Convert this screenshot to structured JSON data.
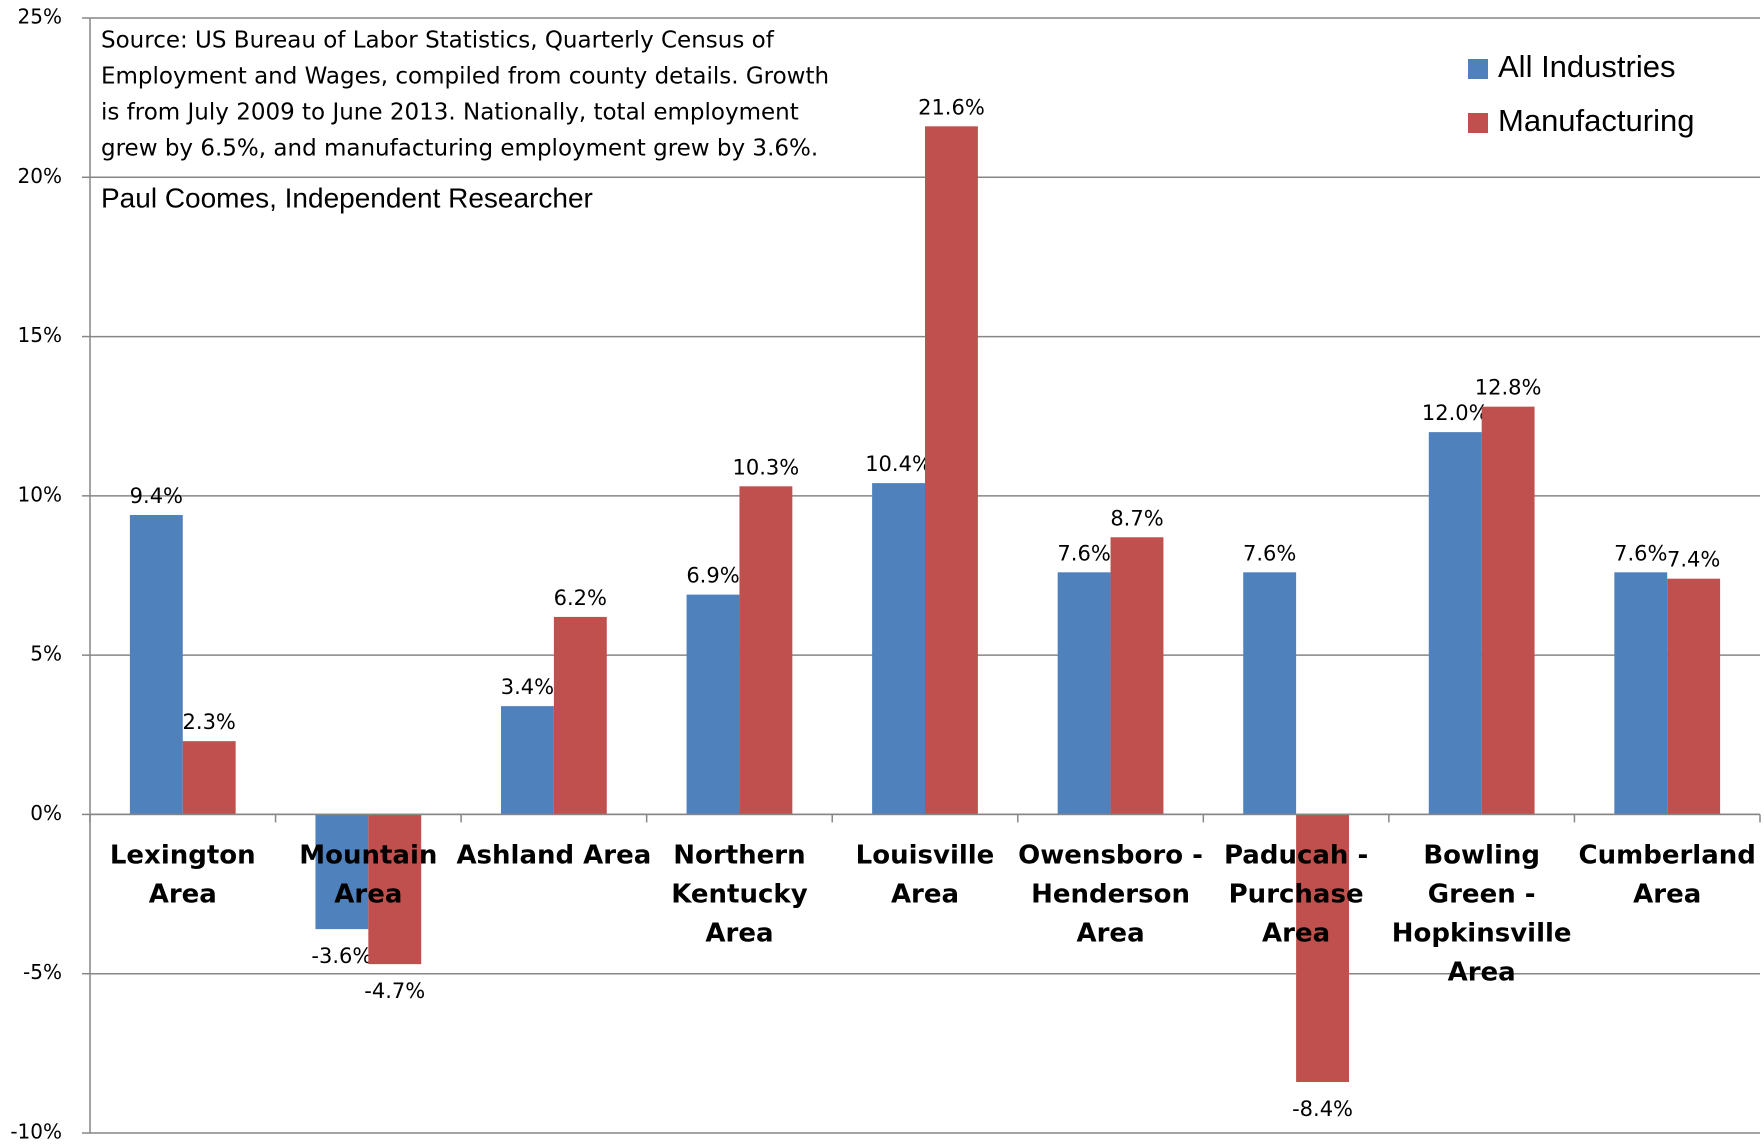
{
  "chart_data": {
    "type": "bar",
    "annotations": [
      "Source: US Bureau of Labor Statistics, Quarterly Census of",
      "Employment and Wages, compiled from county details. Growth",
      "is from July 2009 to June 2013. Nationally, total employment",
      "grew by 6.5%, and manufacturing employment grew by 3.6%."
    ],
    "author": "Paul Coomes, Independent Researcher",
    "categories": [
      [
        "Lexington",
        "Area"
      ],
      [
        "Mountain",
        "Area"
      ],
      [
        "Ashland Area"
      ],
      [
        "Northern",
        "Kentucky",
        "Area"
      ],
      [
        "Louisville",
        "Area"
      ],
      [
        "Owensboro -",
        "Henderson",
        "Area"
      ],
      [
        "Paducah -",
        "Purchase",
        "Area"
      ],
      [
        "Bowling",
        "Green -",
        "Hopkinsville",
        "Area"
      ],
      [
        "Cumberland",
        "Area"
      ]
    ],
    "series": [
      {
        "name": "All Industries",
        "color": "#4f81bd",
        "values": [
          9.4,
          -3.6,
          3.4,
          6.9,
          10.4,
          7.6,
          7.6,
          12.0,
          7.6
        ],
        "value_labels": [
          "9.4%",
          "-3.6%",
          "3.4%",
          "6.9%",
          "10.4%",
          "7.6%",
          "7.6%",
          "12.0%",
          "7.6%"
        ]
      },
      {
        "name": "Manufacturing",
        "color": "#c0504d",
        "values": [
          2.3,
          -4.7,
          6.2,
          10.3,
          21.6,
          8.7,
          -8.4,
          12.8,
          7.4
        ],
        "value_labels": [
          "2.3%",
          "-4.7%",
          "6.2%",
          "10.3%",
          "21.6%",
          "8.7%",
          "-8.4%",
          "12.8%",
          "7.4%"
        ]
      }
    ],
    "ylim": [
      -10,
      25
    ],
    "yticks": [
      {
        "value": -10,
        "label": "-10%"
      },
      {
        "value": -5,
        "label": "-5%"
      },
      {
        "value": 0,
        "label": "0%"
      },
      {
        "value": 5,
        "label": "5%"
      },
      {
        "value": 10,
        "label": "10%"
      },
      {
        "value": 15,
        "label": "15%"
      },
      {
        "value": 20,
        "label": "20%"
      },
      {
        "value": 25,
        "label": "25%"
      }
    ],
    "grid": true,
    "legend": "top-right"
  }
}
